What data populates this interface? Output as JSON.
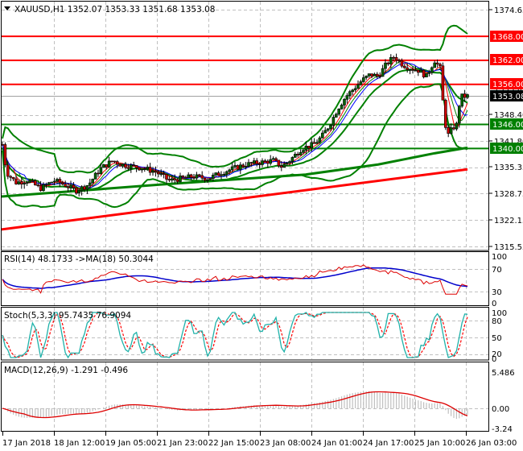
{
  "main": {
    "symbol": "XAUUSD,H1",
    "ohlc": "1352.07 1353.33 1351.68 1353.08",
    "title_full": "XAUUSD,H1  1352.07 1353.33 1351.68 1353.08",
    "price_axis": [
      "1374.65",
      "1348.40",
      "1341.80",
      "1335.35",
      "1328.75",
      "1322.15",
      "1315.55"
    ],
    "levels": [
      {
        "label": "1368.00",
        "value": 1368.0,
        "color": "#ff0000"
      },
      {
        "label": "1362.00",
        "value": 1362.0,
        "color": "#ff0000"
      },
      {
        "label": "1356.00",
        "value": 1356.0,
        "color": "#ff0000"
      },
      {
        "label": "1346.00",
        "value": 1346.0,
        "color": "#008000"
      },
      {
        "label": "1340.00",
        "value": 1340.0,
        "color": "#008000"
      }
    ],
    "current_price": {
      "label": "1353.08",
      "value": 1353.08,
      "color": "#000000"
    },
    "hidden_tag": "1353.00"
  },
  "rsi": {
    "title": "RSI(14) 48.1733  ->MA(18) 50.3044",
    "axis": [
      "100",
      "70",
      "30",
      "0"
    ]
  },
  "stoch": {
    "title": "Stoch(5,3,3) 95.7435 76.9094",
    "axis": [
      "100",
      "80",
      "50",
      "20",
      "0"
    ]
  },
  "macd": {
    "title": "MACD(12,26,9) -1.291 -0.496",
    "axis": [
      "5.486",
      "0.00",
      "-3.24"
    ]
  },
  "time_axis": [
    "17 Jan 2018",
    "18 Jan 12:00",
    "19 Jan 05:00",
    "21 Jan 23:00",
    "22 Jan 15:00",
    "23 Jan 08:00",
    "24 Jan 01:00",
    "24 Jan 17:00",
    "25 Jan 10:00",
    "26 Jan 03:00"
  ],
  "colors": {
    "bull_candle": "#006400",
    "bear_candle": "#cc0000",
    "resistance": "#ff0000",
    "support": "#008000",
    "bollinger": "#008000",
    "ma_fast": "#0000ff",
    "ma_mid": "#ff0000",
    "ma_slow": "#008000",
    "rsi_line": "#dd0000",
    "rsi_ma": "#0000cc",
    "stoch_main": "#20b2aa",
    "stoch_signal": "#ff0000",
    "macd_hist": "#c0c0c0",
    "macd_signal": "#dd0000"
  },
  "chart_data": [
    {
      "type": "candlestick",
      "title": "XAUUSD,H1",
      "ohlc_last": {
        "open": 1352.07,
        "high": 1353.33,
        "low": 1351.68,
        "close": 1353.08
      },
      "ylim": [
        1315.55,
        1374.65
      ],
      "y_ticks": [
        1374.65,
        1368.0,
        1362.0,
        1356.0,
        1353.08,
        1348.4,
        1346.0,
        1341.8,
        1340.0,
        1335.35,
        1328.75,
        1322.15,
        1315.55
      ],
      "x_ticks": [
        "17 Jan 2018",
        "18 Jan 12:00",
        "19 Jan 05:00",
        "21 Jan 23:00",
        "22 Jan 15:00",
        "23 Jan 08:00",
        "24 Jan 01:00",
        "24 Jan 17:00",
        "25 Jan 10:00",
        "26 Jan 03:00"
      ],
      "horizontal_levels": {
        "resistance": [
          1368.0,
          1362.0,
          1356.0
        ],
        "support": [
          1346.0,
          1340.0
        ]
      },
      "approx_close_path": [
        {
          "x": "17 Jan 2018",
          "y": 1333.5
        },
        {
          "x": "18 Jan 12:00",
          "y": 1331.0
        },
        {
          "x": "19 Jan 05:00",
          "y": 1335.5
        },
        {
          "x": "21 Jan 23:00",
          "y": 1333.0
        },
        {
          "x": "22 Jan 15:00",
          "y": 1333.5
        },
        {
          "x": "23 Jan 08:00",
          "y": 1337.5
        },
        {
          "x": "24 Jan 01:00",
          "y": 1344.0
        },
        {
          "x": "24 Jan 17:00",
          "y": 1362.5
        },
        {
          "x": "25 Jan 10:00",
          "y": 1359.0
        },
        {
          "x": "26 Jan 03:00",
          "y": 1353.08
        }
      ],
      "grid": true
    },
    {
      "type": "line",
      "title": "RSI(14) 48.1733 ->MA(18) 50.3044",
      "ylim": [
        0,
        100
      ],
      "y_ticks": [
        100,
        70,
        30,
        0
      ],
      "series": [
        {
          "name": "RSI(14)",
          "last": 48.1733,
          "values": [
            45,
            42,
            50,
            48,
            47,
            52,
            58,
            62,
            55,
            48
          ]
        },
        {
          "name": "MA(18)",
          "last": 50.3044,
          "values": [
            48,
            46,
            49,
            50,
            50,
            51,
            55,
            58,
            57,
            50
          ]
        }
      ]
    },
    {
      "type": "line",
      "title": "Stoch(5,3,3) 95.7435 76.9094",
      "ylim": [
        0,
        100
      ],
      "y_ticks": [
        100,
        80,
        50,
        20,
        0
      ],
      "series": [
        {
          "name": "%K",
          "last": 95.7435
        },
        {
          "name": "%D",
          "last": 76.9094
        }
      ]
    },
    {
      "type": "bar+line",
      "title": "MACD(12,26,9) -1.291 -0.496",
      "ylim": [
        -3.24,
        5.486
      ],
      "y_ticks": [
        5.486,
        0.0,
        -3.24
      ],
      "series": [
        {
          "name": "MACD histogram",
          "last": -1.291
        },
        {
          "name": "Signal",
          "last": -0.496
        }
      ]
    }
  ]
}
